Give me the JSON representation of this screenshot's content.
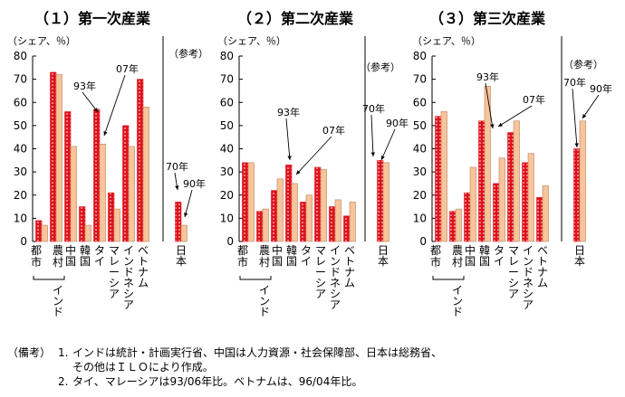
{
  "colors": {
    "series_dark": "#e0111b",
    "series_light": "#f8c49a",
    "dot": "#ffffff",
    "axis": "#000000"
  },
  "chart_data": [
    {
      "type": "bar",
      "title": "（１）第一次産業",
      "ylabel": "（シェア、％）",
      "ylim": [
        0,
        80
      ],
      "yticks": [
        0,
        10,
        20,
        30,
        40,
        50,
        60,
        70,
        80
      ],
      "categories": [
        "都市",
        "農村",
        "中国",
        "韓国",
        "タイ",
        "マレーシア",
        "インドネシア",
        "ベトナム",
        "日本"
      ],
      "group_label": "インド",
      "reference_label": "（参考）",
      "series": [
        {
          "values": [
            9,
            73,
            56,
            15,
            57,
            21,
            50,
            70,
            17
          ]
        },
        {
          "values": [
            7,
            72,
            41,
            7,
            42,
            14,
            41,
            58,
            7
          ]
        }
      ],
      "annotations": [
        {
          "text": "93年",
          "category": "タイ",
          "series": 0
        },
        {
          "text": "07年",
          "category": "タイ",
          "series": 1
        },
        {
          "text": "70年",
          "category": "日本",
          "series": 0
        },
        {
          "text": "90年",
          "category": "日本",
          "series": 1
        }
      ]
    },
    {
      "type": "bar",
      "title": "（２）第二次産業",
      "ylabel": "（シェア、％）",
      "ylim": [
        0,
        80
      ],
      "yticks": [
        0,
        10,
        20,
        30,
        40,
        50,
        60,
        70,
        80
      ],
      "categories": [
        "都市",
        "農村",
        "中国",
        "韓国",
        "タイ",
        "マレーシア",
        "インドネシア",
        "ベトナム",
        "日本"
      ],
      "group_label": "インド",
      "reference_label": "（参考）",
      "series": [
        {
          "values": [
            34,
            13,
            22,
            33,
            17,
            32,
            15,
            11,
            35
          ]
        },
        {
          "values": [
            34,
            14,
            27,
            25,
            20,
            31,
            18,
            17,
            34
          ]
        }
      ],
      "annotations": [
        {
          "text": "93年",
          "category": "韓国",
          "series": 0
        },
        {
          "text": "07年",
          "category": "韓国",
          "series": 1
        },
        {
          "text": "70年",
          "category": "日本",
          "series": 0
        },
        {
          "text": "90年",
          "category": "日本",
          "series": 1
        }
      ]
    },
    {
      "type": "bar",
      "title": "（３）第三次産業",
      "ylabel": "（シェア、％）",
      "ylim": [
        0,
        80
      ],
      "yticks": [
        0,
        10,
        20,
        30,
        40,
        50,
        60,
        70,
        80
      ],
      "categories": [
        "都市",
        "農村",
        "中国",
        "韓国",
        "タイ",
        "マレーシア",
        "インドネシア",
        "ベトナム",
        "日本"
      ],
      "group_label": "インド",
      "reference_label": "（参考）",
      "series": [
        {
          "values": [
            54,
            13,
            21,
            52,
            25,
            47,
            34,
            19,
            40
          ]
        },
        {
          "values": [
            56,
            14,
            32,
            67,
            36,
            52,
            38,
            24,
            52
          ]
        }
      ],
      "annotations": [
        {
          "text": "93年",
          "category": "マレーシア",
          "series": 0
        },
        {
          "text": "07年",
          "category": "マレーシア",
          "series": 1
        },
        {
          "text": "70年",
          "category": "日本",
          "series": 0
        },
        {
          "text": "90年",
          "category": "日本",
          "series": 1
        }
      ]
    }
  ],
  "notes": {
    "label": "（備考）",
    "items": [
      {
        "num": "1.",
        "lines": [
          "インドは統計・計画実行省、中国は人力資源・社会保障部、日本は総務省、",
          "その他はＩＬＯにより作成。"
        ]
      },
      {
        "num": "2.",
        "lines": [
          "タイ、マレーシアは93/06年比。ベトナムは、96/04年比。"
        ]
      }
    ]
  }
}
